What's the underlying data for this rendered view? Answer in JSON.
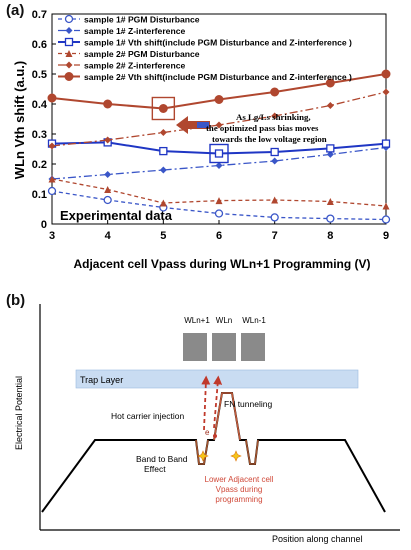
{
  "panel_a": {
    "label": "(a)",
    "inset": "Experimental data",
    "annotation": [
      "As Lg/Ls shrinking,",
      "the optimized pass bias moves",
      "towards the low voltage region"
    ],
    "chart_data": {
      "type": "line",
      "title": "",
      "xlabel": "Adjacent cell Vpass during WLn+1 Programming (V)",
      "ylabel": "WLn Vth shift (a.u.)",
      "xlim": [
        3,
        9
      ],
      "ylim": [
        0,
        0.7
      ],
      "xticks": [
        "3",
        "4",
        "5",
        "6",
        "7",
        "8",
        "9"
      ],
      "yticks": [
        "0",
        "0.1",
        "0.2",
        "0.3",
        "0.4",
        "0.5",
        "0.6",
        "0.7"
      ],
      "grid": false,
      "legend_position": "top-left",
      "x": [
        3,
        4,
        5,
        6,
        7,
        8,
        9
      ],
      "series": [
        {
          "name": "sample 1# PGM Disturbance",
          "values": [
            0.11,
            0.08,
            0.055,
            0.035,
            0.022,
            0.018,
            0.015
          ],
          "color": "#3a56c8",
          "dash": "4,3",
          "marker": "circle-open"
        },
        {
          "name": "sample 1# Z-interference",
          "values": [
            0.15,
            0.165,
            0.18,
            0.195,
            0.21,
            0.232,
            0.255
          ],
          "color": "#3a56c8",
          "dash": "8,3,2,3",
          "marker": "diamond"
        },
        {
          "name": "sample 1# Vth shift(include PGM Disturbance and Z-interference )",
          "values": [
            0.268,
            0.272,
            0.243,
            0.235,
            0.24,
            0.252,
            0.268
          ],
          "color": "#1f36c4",
          "dash": "",
          "marker": "square-open"
        },
        {
          "name": "sample 2# PGM Disturbance",
          "values": [
            0.15,
            0.115,
            0.07,
            0.078,
            0.08,
            0.075,
            0.06
          ],
          "color": "#b0472f",
          "dash": "4,3",
          "marker": "triangle"
        },
        {
          "name": "sample 2# Z-interference",
          "values": [
            0.26,
            0.28,
            0.305,
            0.33,
            0.36,
            0.395,
            0.44
          ],
          "color": "#b0472f",
          "dash": "8,3,2,3",
          "marker": "diamond"
        },
        {
          "name": "sample 2# Vth shift(include PGM Disturbance and Z-interference )",
          "values": [
            0.42,
            0.4,
            0.385,
            0.415,
            0.44,
            0.47,
            0.5
          ],
          "color": "#b0472f",
          "dash": "",
          "marker": "circle"
        }
      ]
    }
  },
  "panel_b": {
    "label": "(b)",
    "ylabel": "Electrical Potential",
    "xlabel": "Position along channel",
    "wordlines": [
      "WLn+1",
      "WLn",
      "WLn-1"
    ],
    "trap_layer": "Trap Layer",
    "fn_tunneling": "FN tunneling",
    "hot_carrier": "Hot carrier injection",
    "electron": "e",
    "btbt": [
      "Band to Band",
      "Effect"
    ],
    "lower_adjacent": [
      "Lower Adjacent cell",
      "Vpass during",
      "programming"
    ],
    "colors": {
      "band": "#000000",
      "well": "#a0522d",
      "arrow": "#c0392b",
      "trap": "#c9dcf2",
      "wordline": "#8a8a8a",
      "red_text": "#d04a3a"
    }
  }
}
